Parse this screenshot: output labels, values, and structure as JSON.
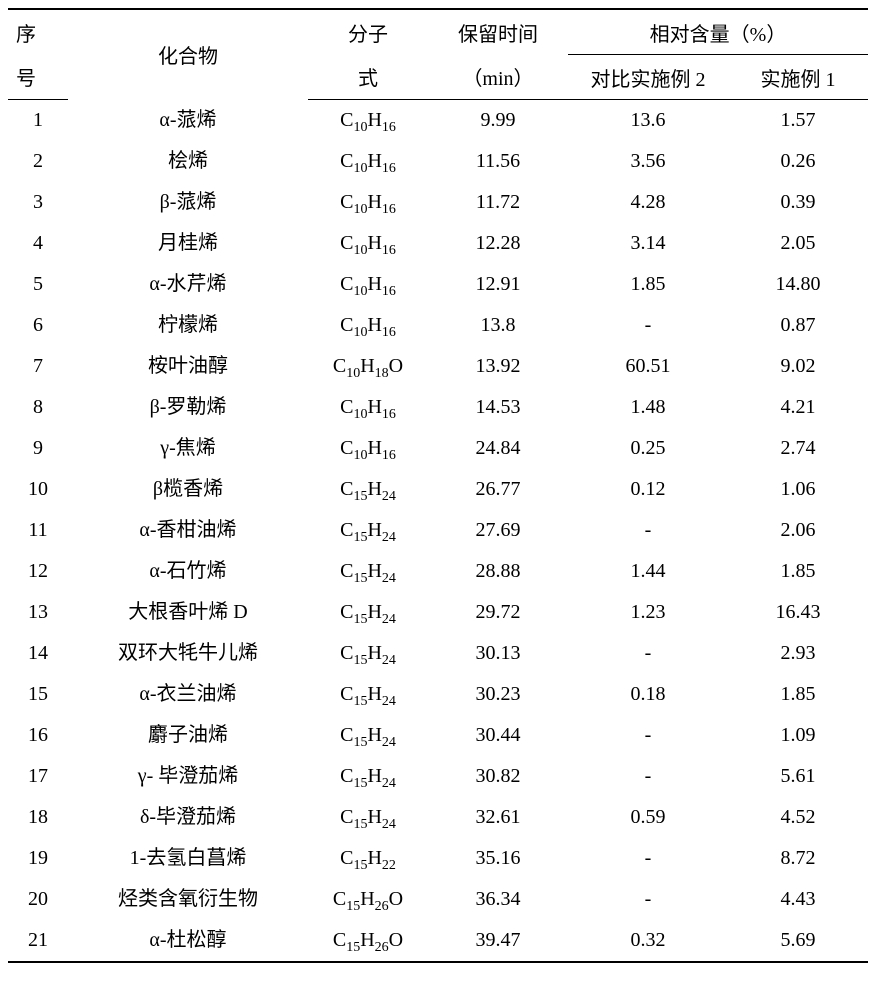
{
  "header": {
    "seq_l1": "序",
    "seq_l2": "号",
    "name": "化合物",
    "mf_l1": "分子",
    "mf_l2": "式",
    "rt_l1": "保留时间",
    "rt_l2": "（min）",
    "rel_group": "相对含量（%）",
    "cmp2": "对比实施例 2",
    "ex1": "实施例 1"
  },
  "rows": [
    {
      "seq": "1",
      "name": "α-蒎烯",
      "mf": "C<sub>10</sub>H<sub>16</sub>",
      "rt": "9.99",
      "cmp2": "13.6",
      "ex1": "1.57"
    },
    {
      "seq": "2",
      "name": "桧烯",
      "mf": "C<sub>10</sub>H<sub>16</sub>",
      "rt": "11.56",
      "cmp2": "3.56",
      "ex1": "0.26"
    },
    {
      "seq": "3",
      "name": "β-蒎烯",
      "mf": "C<sub>10</sub>H<sub>16</sub>",
      "rt": "11.72",
      "cmp2": "4.28",
      "ex1": "0.39"
    },
    {
      "seq": "4",
      "name": "月桂烯",
      "mf": "C<sub>10</sub>H<sub>16</sub>",
      "rt": "12.28",
      "cmp2": "3.14",
      "ex1": "2.05"
    },
    {
      "seq": "5",
      "name": "α-水芹烯",
      "mf": "C<sub>10</sub>H<sub>16</sub>",
      "rt": "12.91",
      "cmp2": "1.85",
      "ex1": "14.80"
    },
    {
      "seq": "6",
      "name": "柠檬烯",
      "mf": "C<sub>10</sub>H<sub>16</sub>",
      "rt": "13.8",
      "cmp2": "-",
      "ex1": "0.87"
    },
    {
      "seq": "7",
      "name": "桉叶油醇",
      "mf": "C<sub>10</sub>H<sub>18</sub>O",
      "rt": "13.92",
      "cmp2": "60.51",
      "ex1": "9.02"
    },
    {
      "seq": "8",
      "name": "β-罗勒烯",
      "mf": "C<sub>10</sub>H<sub>16</sub>",
      "rt": "14.53",
      "cmp2": "1.48",
      "ex1": "4.21"
    },
    {
      "seq": "9",
      "name": "γ-焦烯",
      "mf": "C<sub>10</sub>H<sub>16</sub>",
      "rt": "24.84",
      "cmp2": "0.25",
      "ex1": "2.74"
    },
    {
      "seq": "10",
      "name": "β榄香烯",
      "mf": "C<sub>15</sub>H<sub>24</sub>",
      "rt": "26.77",
      "cmp2": "0.12",
      "ex1": "1.06"
    },
    {
      "seq": "11",
      "name": "α-香柑油烯",
      "mf": "C<sub>15</sub>H<sub>24</sub>",
      "rt": "27.69",
      "cmp2": "-",
      "ex1": "2.06"
    },
    {
      "seq": "12",
      "name": "α-石竹烯",
      "mf": "C<sub>15</sub>H<sub>24</sub>",
      "rt": "28.88",
      "cmp2": "1.44",
      "ex1": "1.85"
    },
    {
      "seq": "13",
      "name": "大根香叶烯 D",
      "mf": "C<sub>15</sub>H<sub>24</sub>",
      "rt": "29.72",
      "cmp2": "1.23",
      "ex1": "16.43"
    },
    {
      "seq": "14",
      "name": "双环大牦牛儿烯",
      "mf": "C<sub>15</sub>H<sub>24</sub>",
      "rt": "30.13",
      "cmp2": "-",
      "ex1": "2.93"
    },
    {
      "seq": "15",
      "name": "α-衣兰油烯",
      "mf": "C<sub>15</sub>H<sub>24</sub>",
      "rt": "30.23",
      "cmp2": "0.18",
      "ex1": "1.85"
    },
    {
      "seq": "16",
      "name": "麝子油烯",
      "mf": "C<sub>15</sub>H<sub>24</sub>",
      "rt": "30.44",
      "cmp2": "-",
      "ex1": "1.09"
    },
    {
      "seq": "17",
      "name": "γ- 毕澄茄烯",
      "mf": "C<sub>15</sub>H<sub>24</sub>",
      "rt": "30.82",
      "cmp2": "-",
      "ex1": "5.61"
    },
    {
      "seq": "18",
      "name": "δ-毕澄茄烯",
      "mf": "C<sub>15</sub>H<sub>24</sub>",
      "rt": "32.61",
      "cmp2": "0.59",
      "ex1": "4.52"
    },
    {
      "seq": "19",
      "name": "1-去氢白菖烯",
      "mf": "C<sub>15</sub>H<sub>22</sub>",
      "rt": "35.16",
      "cmp2": "-",
      "ex1": "8.72"
    },
    {
      "seq": "20",
      "name": "烃类含氧衍生物",
      "mf": "C<sub>15</sub>H<sub>26</sub>O",
      "rt": "36.34",
      "cmp2": "-",
      "ex1": "4.43"
    },
    {
      "seq": "21",
      "name": "α-杜松醇",
      "mf": "C<sub>15</sub>H<sub>26</sub>O",
      "rt": "39.47",
      "cmp2": "0.32",
      "ex1": "5.69"
    }
  ]
}
